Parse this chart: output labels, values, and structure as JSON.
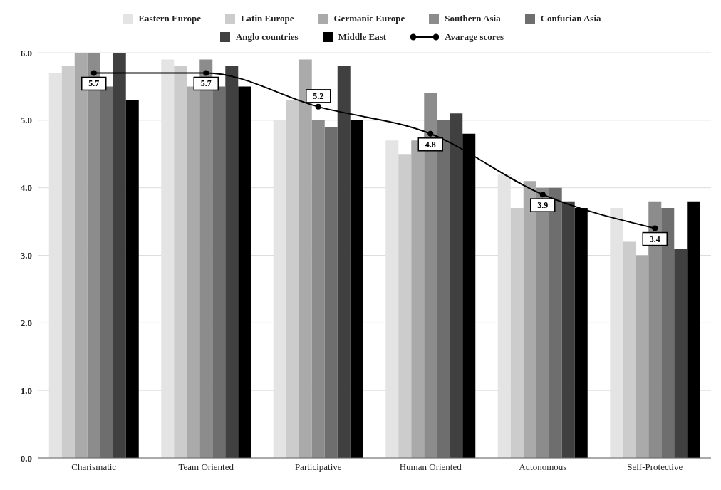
{
  "chart_data": {
    "type": "bar",
    "categories": [
      "Charismatic",
      "Team Oriented",
      "Participative",
      "Human Oriented",
      "Autonomous",
      "Self-Protective"
    ],
    "series": [
      {
        "name": "Eastern Europe",
        "color": "#e4e4e4",
        "values": [
          5.7,
          5.9,
          5.0,
          4.7,
          4.2,
          3.7
        ]
      },
      {
        "name": "Latin Europe",
        "color": "#cccccc",
        "values": [
          5.8,
          5.8,
          5.3,
          4.5,
          3.7,
          3.2
        ]
      },
      {
        "name": "Germanic Europe",
        "color": "#aaaaaa",
        "values": [
          6.0,
          5.5,
          5.9,
          4.7,
          4.1,
          3.0
        ]
      },
      {
        "name": "Southern Asia",
        "color": "#8c8c8c",
        "values": [
          6.0,
          5.9,
          5.0,
          5.4,
          4.0,
          3.8
        ]
      },
      {
        "name": "Confucian Asia",
        "color": "#6e6e6e",
        "values": [
          5.5,
          5.5,
          4.9,
          5.0,
          4.0,
          3.7
        ]
      },
      {
        "name": "Anglo countries",
        "color": "#404040",
        "values": [
          6.0,
          5.8,
          5.8,
          5.1,
          3.8,
          3.1
        ]
      },
      {
        "name": "Middle East",
        "color": "#000000",
        "values": [
          5.3,
          5.5,
          5.0,
          4.8,
          3.7,
          3.8
        ]
      },
      {
        "name": "Avarage scores",
        "type": "line",
        "color": "#000000",
        "values": [
          5.7,
          5.7,
          5.2,
          4.8,
          3.9,
          3.4
        ],
        "data_labels": true,
        "marker": "circle"
      }
    ],
    "ylim": [
      0,
      6
    ],
    "yticks": [
      {
        "value": 0,
        "label": "0.0"
      },
      {
        "value": 1,
        "label": "1.0"
      },
      {
        "value": 2,
        "label": "2.0"
      },
      {
        "value": 3,
        "label": "3.0"
      },
      {
        "value": 4,
        "label": "4.0"
      },
      {
        "value": 5,
        "label": "5.0"
      },
      {
        "value": 6,
        "label": "6.0"
      }
    ],
    "grid": "y",
    "legend": "top"
  }
}
